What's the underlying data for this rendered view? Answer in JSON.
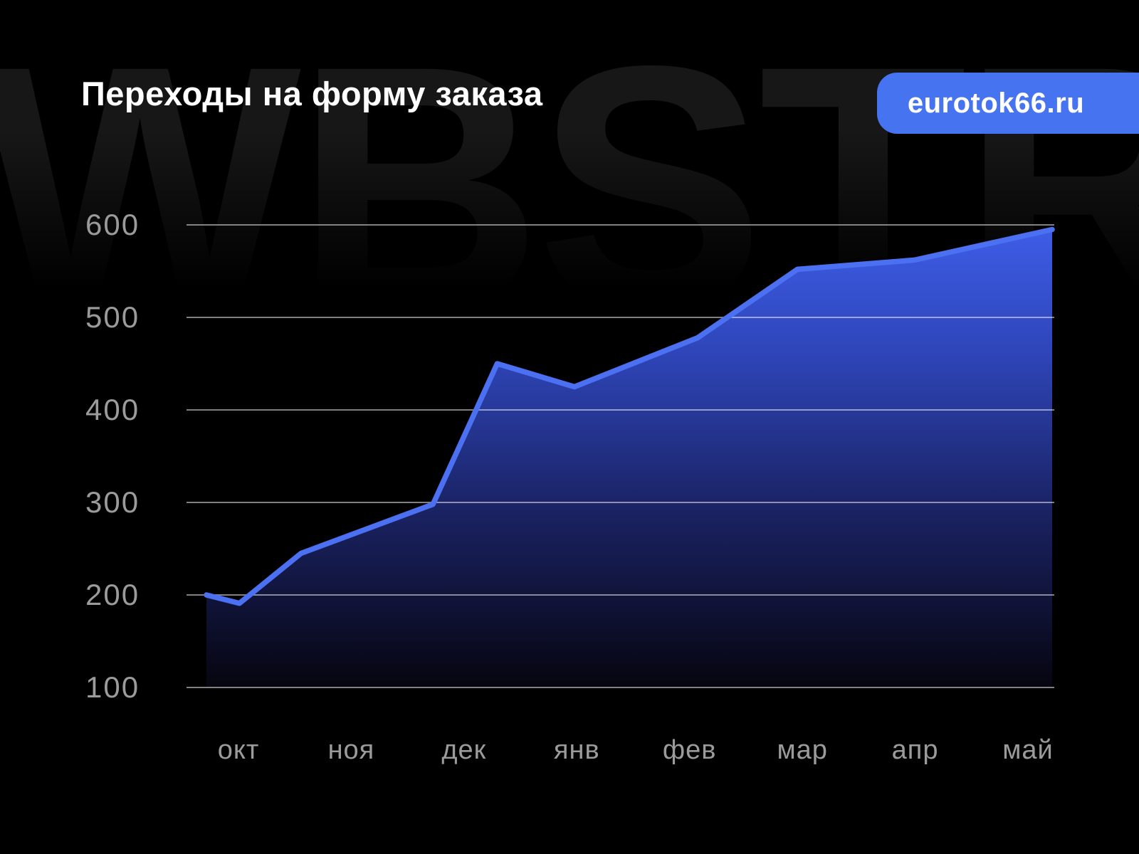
{
  "header": {
    "title": "Переходы на форму заказа",
    "badge_label": "eurotok66.ru"
  },
  "watermark": {
    "text": "WBSTR"
  },
  "colors": {
    "background": "#000000",
    "title_text": "#ffffff",
    "badge_bg": "#4673f0",
    "badge_text": "#ffffff",
    "watermark_text": "#171717",
    "axis_label": "#9b9b9b",
    "gridline": "rgba(255,255,255,0.5)",
    "line": "#4b70f2",
    "fill_top": "#3e5ee8",
    "fill_upper_mid": "#2e45b8",
    "fill_lower_mid": "#1b2467",
    "fill_bottom": "#06050f"
  },
  "chart_data": {
    "type": "area",
    "title": "Переходы на форму заказа",
    "categories": [
      "окт",
      "ноя",
      "дек",
      "янв",
      "фев",
      "мар",
      "апр",
      "май"
    ],
    "values": [
      190,
      250,
      300,
      425,
      480,
      550,
      560,
      595
    ],
    "annotations": [
      "line starts at 200 just before окт",
      "spike to ~450 between дек and янв before dipping to 425 at янв"
    ],
    "y_ticks": [
      600,
      500,
      400,
      300,
      200,
      100
    ],
    "ylim": [
      100,
      650
    ],
    "xlabel": "",
    "ylabel": "",
    "grid": "horizontal gridlines only",
    "legend": "none",
    "polyline": [
      {
        "f": 0.023,
        "v": 200
      },
      {
        "f": 0.061,
        "v": 191
      },
      {
        "f": 0.132,
        "v": 245
      },
      {
        "f": 0.284,
        "v": 298
      },
      {
        "f": 0.358,
        "v": 450
      },
      {
        "f": 0.447,
        "v": 425
      },
      {
        "f": 0.589,
        "v": 478
      },
      {
        "f": 0.704,
        "v": 552
      },
      {
        "f": 0.839,
        "v": 562
      },
      {
        "f": 0.9975,
        "v": 595
      }
    ]
  }
}
